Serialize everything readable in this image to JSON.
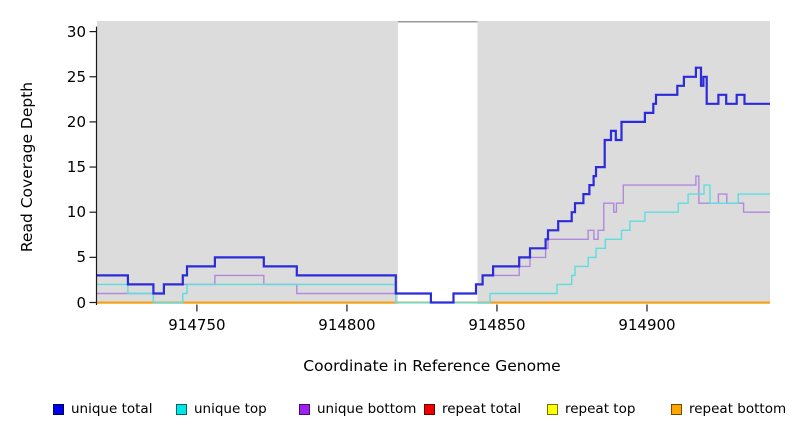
{
  "chart_data": {
    "type": "line",
    "subtype": "step-coverage-plot",
    "title": "",
    "xlabel": "Coordinate in Reference Genome",
    "ylabel": "Read Coverage Depth",
    "xlim": [
      914716.7,
      914941
    ],
    "ylim": [
      0,
      30
    ],
    "x_ticks": [
      914750,
      914800,
      914850,
      914900
    ],
    "y_ticks": [
      0,
      5,
      10,
      15,
      20,
      25,
      30
    ],
    "grid": false,
    "plot_background": "#dcdcdc",
    "gap_band": {
      "from": 914817,
      "to": 914843.5,
      "color": "#ffffff",
      "top_edge_color": "#999999"
    },
    "axis_color": "#1a1a1a",
    "draw_order": [
      "repeat_top",
      "repeat_total",
      "repeat_bottom",
      "unique_bottom",
      "unique_top",
      "unique_total"
    ],
    "series": [
      {
        "id": "unique_total",
        "name": "unique total",
        "color": "#0000e6",
        "line_color": "#2b2bd9",
        "line_width": 2.2,
        "steps": [
          [
            914716.7,
            3
          ],
          [
            914727,
            2
          ],
          [
            914735.5,
            1
          ],
          [
            914739,
            2
          ],
          [
            914745.3,
            3
          ],
          [
            914746.7,
            4
          ],
          [
            914756,
            5
          ],
          [
            914772.3,
            4
          ],
          [
            914783.3,
            3
          ],
          [
            914816.3,
            1
          ],
          [
            914828,
            0
          ],
          [
            914835.5,
            1
          ],
          [
            914843,
            2
          ],
          [
            914845.2,
            3
          ],
          [
            914848.7,
            4
          ],
          [
            914857.4,
            5
          ],
          [
            914861,
            6
          ],
          [
            914866.2,
            7
          ],
          [
            914867,
            8
          ],
          [
            914870.4,
            9
          ],
          [
            914874.9,
            10
          ],
          [
            914876,
            11
          ],
          [
            914878.8,
            12
          ],
          [
            914880.8,
            13
          ],
          [
            914882.2,
            14
          ],
          [
            914883,
            15
          ],
          [
            914885.9,
            18
          ],
          [
            914888,
            19
          ],
          [
            914889.6,
            18
          ],
          [
            914891.5,
            20
          ],
          [
            914899.3,
            21
          ],
          [
            914902.1,
            22
          ],
          [
            914903,
            23
          ],
          [
            914910.1,
            24
          ],
          [
            914912.3,
            25
          ],
          [
            914916.3,
            26
          ],
          [
            914918,
            24
          ],
          [
            914918.8,
            25
          ],
          [
            914919.9,
            22
          ],
          [
            914923.8,
            23
          ],
          [
            914926.4,
            22
          ],
          [
            914929.9,
            23
          ],
          [
            914932.5,
            22
          ]
        ]
      },
      {
        "id": "unique_top",
        "name": "unique top",
        "color": "#00e6e6",
        "line_color": "#5cdede",
        "line_width": 1.4,
        "steps": [
          [
            914716.7,
            2
          ],
          [
            914727,
            1
          ],
          [
            914735.5,
            0
          ],
          [
            914745.3,
            1
          ],
          [
            914746.7,
            2
          ],
          [
            914816.3,
            0
          ],
          [
            914847.7,
            1
          ],
          [
            914870,
            2
          ],
          [
            914874.9,
            3
          ],
          [
            914876,
            4
          ],
          [
            914880.4,
            5
          ],
          [
            914883,
            6
          ],
          [
            914886.1,
            7
          ],
          [
            914891.5,
            8
          ],
          [
            914894.3,
            9
          ],
          [
            914899.3,
            10
          ],
          [
            914910.4,
            11
          ],
          [
            914913.7,
            12
          ],
          [
            914919,
            13
          ],
          [
            914921,
            11
          ],
          [
            914930.4,
            12
          ]
        ]
      },
      {
        "id": "unique_bottom",
        "name": "unique bottom",
        "color": "#a020f0",
        "line_color": "#b288de",
        "line_width": 1.4,
        "steps": [
          [
            914716.7,
            1
          ],
          [
            914739,
            2
          ],
          [
            914756,
            3
          ],
          [
            914772.3,
            2
          ],
          [
            914783.3,
            1
          ],
          [
            914828,
            0
          ],
          [
            914835.5,
            1
          ],
          [
            914843,
            2
          ],
          [
            914845.2,
            3
          ],
          [
            914857.4,
            4
          ],
          [
            914861,
            5
          ],
          [
            914866.2,
            6
          ],
          [
            914867,
            7
          ],
          [
            914880.4,
            8
          ],
          [
            914882.3,
            7
          ],
          [
            914883.7,
            8
          ],
          [
            914885.6,
            11
          ],
          [
            914888.9,
            10
          ],
          [
            914889.8,
            11
          ],
          [
            914892.1,
            13
          ],
          [
            914916.3,
            14
          ],
          [
            914917.3,
            11
          ],
          [
            914923.8,
            12
          ],
          [
            914926.6,
            11
          ],
          [
            914932.2,
            10
          ]
        ]
      },
      {
        "id": "repeat_total",
        "name": "repeat total",
        "color": "#ee0000",
        "line_color": "#ee0000",
        "line_width": 1.4,
        "steps": [
          [
            914716.7,
            0
          ]
        ]
      },
      {
        "id": "repeat_top",
        "name": "repeat top",
        "color": "#ffff00",
        "line_color": "#ffff00",
        "line_width": 1.4,
        "steps": [
          [
            914716.7,
            0
          ]
        ]
      },
      {
        "id": "repeat_bottom",
        "name": "repeat bottom",
        "color": "#ffa500",
        "line_color": "#ffa500",
        "line_width": 1.8,
        "steps": [
          [
            914716.7,
            0
          ]
        ]
      }
    ],
    "legend": {
      "position": "bottom",
      "items": [
        "unique total",
        "unique top",
        "unique bottom",
        "repeat total",
        "repeat top",
        "repeat bottom"
      ]
    }
  }
}
